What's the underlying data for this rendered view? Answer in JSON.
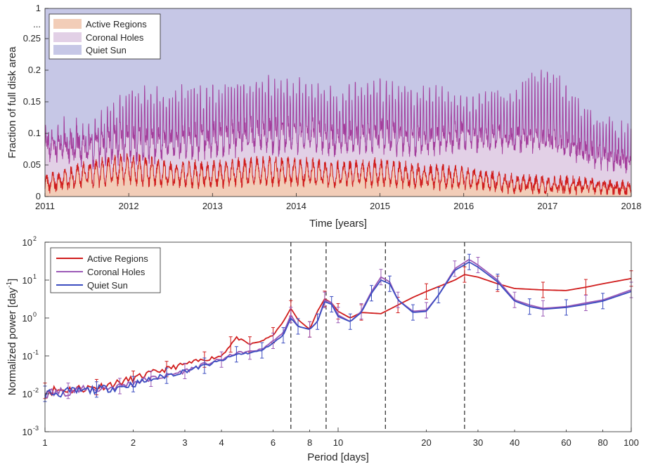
{
  "chart_data": [
    {
      "type": "area",
      "xlabel": "Time [years]",
      "ylabel": "Fraction of full disk area",
      "xlim": [
        2011,
        2018
      ],
      "ylim": [
        0,
        0.28
      ],
      "x_ticks": [
        "2011",
        "2012",
        "2013",
        "2014",
        "2015",
        "2016",
        "2017",
        "2018"
      ],
      "y_ticks": [
        "0",
        "0.05",
        "0.1",
        "0.15",
        "0.2",
        "0.25",
        "...",
        "1"
      ],
      "y_axis_break": "... then 1 at top",
      "legend_position": "top-left",
      "series": [
        {
          "name": "Active Regions",
          "fill": "#f2cdb8",
          "line": "#d01c1c",
          "note": "oscillating signal between ~0.01 and ~0.06",
          "x": [
            2011,
            2011.5,
            2012,
            2012.5,
            2013,
            2013.5,
            2014,
            2014.5,
            2015,
            2015.5,
            2016,
            2016.5,
            2017,
            2017.5,
            2018
          ],
          "values": [
            0.02,
            0.035,
            0.045,
            0.035,
            0.035,
            0.04,
            0.04,
            0.035,
            0.038,
            0.032,
            0.03,
            0.022,
            0.018,
            0.018,
            0.012
          ]
        },
        {
          "name": "Coronal Holes",
          "fill": "#e2d0e6",
          "line": "#a33d9c",
          "note": "cumulative top boundary, strongly oscillating",
          "x": [
            2011,
            2011.5,
            2012,
            2012.5,
            2013,
            2013.5,
            2014,
            2014.5,
            2015,
            2015.5,
            2016,
            2016.5,
            2017,
            2017.5,
            2018
          ],
          "values": [
            0.1,
            0.09,
            0.1,
            0.1,
            0.11,
            0.12,
            0.12,
            0.11,
            0.12,
            0.11,
            0.12,
            0.12,
            0.12,
            0.09,
            0.07
          ],
          "peaks": [
            0.13,
            0.12,
            0.18,
            0.18,
            0.19,
            0.2,
            0.2,
            0.18,
            0.2,
            0.19,
            0.18,
            0.19,
            0.23,
            0.15,
            0.12
          ]
        },
        {
          "name": "Quiet Sun",
          "fill": "#c6c7e6",
          "line": "none",
          "values_note": "fills to 1"
        }
      ]
    },
    {
      "type": "line",
      "scale": {
        "x": "log",
        "y": "log"
      },
      "xlabel": "Period [days]",
      "ylabel": "Normalized power [day⁻¹]",
      "xlim": [
        1,
        100
      ],
      "ylim": [
        0.001,
        100
      ],
      "x_ticks": [
        {
          "v": 1,
          "label": "1"
        },
        {
          "v": 2,
          "label": "2"
        },
        {
          "v": 3,
          "label": "3"
        },
        {
          "v": 4,
          "label": "4"
        },
        {
          "v": 6,
          "label": "6"
        },
        {
          "v": 8,
          "label": "8"
        },
        {
          "v": 10,
          "label": "10"
        },
        {
          "v": 20,
          "label": "20"
        },
        {
          "v": 30,
          "label": "30"
        },
        {
          "v": 40,
          "label": "40"
        },
        {
          "v": 60,
          "label": "60"
        },
        {
          "v": 80,
          "label": "80"
        },
        {
          "v": 100,
          "label": "100"
        }
      ],
      "y_ticks": [
        {
          "v": 0.001,
          "label": "10",
          "exp": "-3"
        },
        {
          "v": 0.01,
          "label": "10",
          "exp": "-2"
        },
        {
          "v": 0.1,
          "label": "10",
          "exp": "-1"
        },
        {
          "v": 1,
          "label": "10",
          "exp": "0"
        },
        {
          "v": 10,
          "label": "10",
          "exp": "1"
        },
        {
          "v": 100,
          "label": "10",
          "exp": "2"
        }
      ],
      "vlines": [
        6.9,
        9.1,
        14.5,
        27.0
      ],
      "legend_position": "top-left",
      "series": [
        {
          "name": "Active Regions",
          "color": "#d01c1c",
          "x": [
            1,
            1.2,
            1.5,
            1.8,
            2,
            2.3,
            2.6,
            3,
            3.5,
            4,
            4.3,
            4.5,
            5,
            5.5,
            6,
            6.5,
            6.9,
            7.3,
            8,
            8.5,
            9,
            9.5,
            10,
            11,
            12,
            14,
            16,
            18,
            20,
            25,
            27,
            30,
            35,
            40,
            50,
            60,
            70,
            80,
            100
          ],
          "y": [
            0.012,
            0.013,
            0.015,
            0.02,
            0.025,
            0.035,
            0.045,
            0.06,
            0.08,
            0.1,
            0.2,
            0.3,
            0.2,
            0.25,
            0.35,
            0.8,
            1.8,
            0.9,
            0.5,
            1.5,
            3.2,
            2.5,
            1.5,
            1.0,
            1.4,
            1.3,
            2.2,
            3.5,
            5,
            10,
            14,
            12,
            8,
            6,
            5.5,
            5.3,
            6.5,
            8,
            11
          ]
        },
        {
          "name": "Coronal Holes",
          "color": "#9b59b6",
          "x": [
            1,
            1.2,
            1.5,
            1.8,
            2,
            2.3,
            2.6,
            3,
            3.5,
            4,
            4.5,
            5,
            5.5,
            6,
            6.5,
            6.9,
            7.3,
            8,
            8.5,
            9,
            9.5,
            10,
            11,
            12,
            13,
            14,
            15,
            16,
            18,
            20,
            22,
            25,
            28,
            30,
            35,
            40,
            45,
            50,
            60,
            70,
            80,
            100
          ],
          "y": [
            0.01,
            0.012,
            0.013,
            0.016,
            0.02,
            0.025,
            0.03,
            0.04,
            0.06,
            0.08,
            0.12,
            0.13,
            0.15,
            0.25,
            0.4,
            1.2,
            0.6,
            0.5,
            0.8,
            3,
            2.5,
            1.2,
            0.8,
            1.5,
            5,
            12,
            9,
            3,
            1.5,
            1.6,
            4,
            20,
            35,
            25,
            10,
            3,
            2.2,
            1.8,
            2,
            2.5,
            3,
            5.5
          ]
        },
        {
          "name": "Quiet Sun",
          "color": "#3b4cc0",
          "x": [
            1,
            1.2,
            1.5,
            1.8,
            2,
            2.3,
            2.6,
            3,
            3.5,
            4,
            4.5,
            5,
            5.5,
            6,
            6.5,
            6.9,
            7.3,
            8,
            8.5,
            9,
            9.5,
            10,
            11,
            12,
            13,
            14,
            15,
            16,
            18,
            20,
            22,
            25,
            28,
            30,
            35,
            40,
            45,
            50,
            60,
            70,
            80,
            100
          ],
          "y": [
            0.01,
            0.011,
            0.013,
            0.015,
            0.018,
            0.024,
            0.03,
            0.04,
            0.055,
            0.075,
            0.11,
            0.12,
            0.14,
            0.22,
            0.35,
            1.0,
            0.6,
            0.5,
            0.8,
            2.7,
            2.3,
            1.1,
            0.8,
            1.4,
            4.5,
            10,
            8,
            3,
            1.4,
            1.5,
            4,
            18,
            30,
            22,
            9,
            2.8,
            2,
            1.7,
            1.9,
            2.3,
            2.8,
            5
          ]
        }
      ]
    }
  ]
}
